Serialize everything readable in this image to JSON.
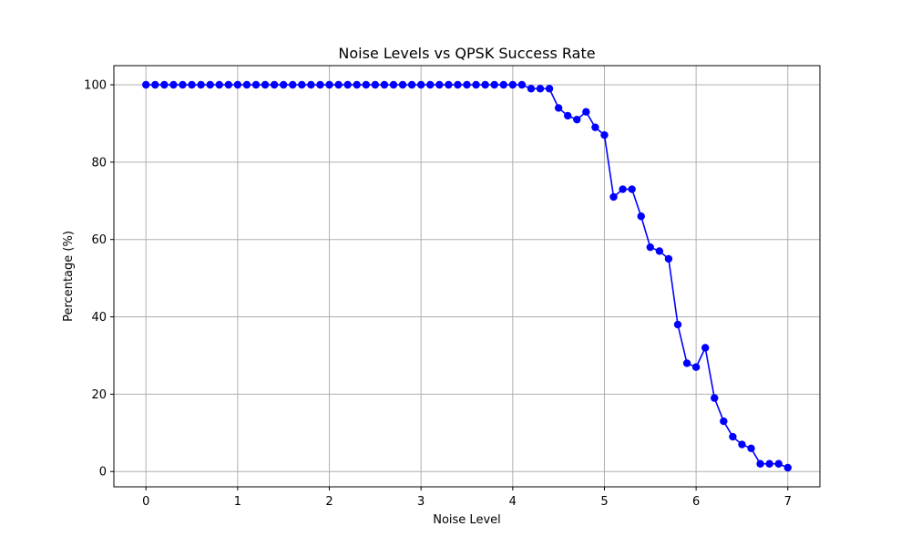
{
  "chart_data": {
    "type": "line",
    "title": "Noise Levels vs QPSK Success Rate",
    "xlabel": "Noise Level",
    "ylabel": "Percentage (%)",
    "xlim": [
      -0.35,
      7.35
    ],
    "ylim": [
      -3.95,
      104.95
    ],
    "xticks": [
      0,
      1,
      2,
      3,
      4,
      5,
      6,
      7
    ],
    "yticks": [
      0,
      20,
      40,
      60,
      80,
      100
    ],
    "grid": true,
    "marker": "circle",
    "series": [
      {
        "color": "#0000ff",
        "x": [
          0.0,
          0.1,
          0.2,
          0.3,
          0.4,
          0.5,
          0.6,
          0.7,
          0.8,
          0.9,
          1.0,
          1.1,
          1.2,
          1.3,
          1.4,
          1.5,
          1.6,
          1.7,
          1.8,
          1.9,
          2.0,
          2.1,
          2.2,
          2.3,
          2.4,
          2.5,
          2.6,
          2.7,
          2.8,
          2.9,
          3.0,
          3.1,
          3.2,
          3.3,
          3.4,
          3.5,
          3.6,
          3.7,
          3.8,
          3.9,
          4.0,
          4.1,
          4.2,
          4.3,
          4.4,
          4.5,
          4.6,
          4.7,
          4.8,
          4.9,
          5.0,
          5.1,
          5.2,
          5.3,
          5.4,
          5.5,
          5.6,
          5.7,
          5.8,
          5.9,
          6.0,
          6.1,
          6.2,
          6.3,
          6.4,
          6.5,
          6.6,
          6.7,
          6.8,
          6.9,
          7.0
        ],
        "values": [
          100,
          100,
          100,
          100,
          100,
          100,
          100,
          100,
          100,
          100,
          100,
          100,
          100,
          100,
          100,
          100,
          100,
          100,
          100,
          100,
          100,
          100,
          100,
          100,
          100,
          100,
          100,
          100,
          100,
          100,
          100,
          100,
          100,
          100,
          100,
          100,
          100,
          100,
          100,
          100,
          100,
          100,
          99,
          99,
          99,
          94,
          92,
          91,
          93,
          89,
          87,
          71,
          73,
          73,
          66,
          58,
          57,
          55,
          38,
          28,
          27,
          32,
          19,
          13,
          9,
          7,
          6,
          2,
          2,
          2,
          1
        ]
      }
    ]
  }
}
